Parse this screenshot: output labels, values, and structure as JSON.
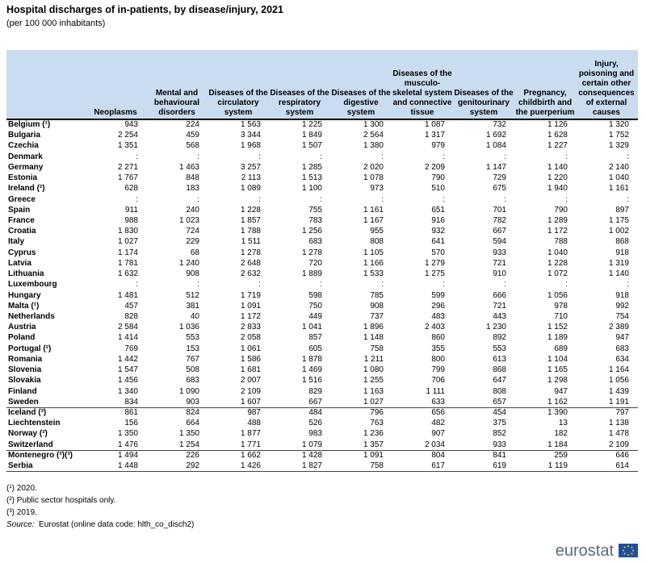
{
  "header": {
    "title": "Hospital discharges of in-patients, by disease/injury, 2021",
    "subtitle": "(per 100 000 inhabitants)"
  },
  "table": {
    "columns": [
      "Neoplasms",
      "Mental and behavioural disorders",
      "Diseases of the circulatory system",
      "Diseases of the respiratory system",
      "Diseases of the digestive system",
      "Diseases of the musculo-skeletal system and connective tissue",
      "Diseases of the genitourinary system",
      "Pregnancy, childbirth and the puerperium",
      "Injury, poisoning and certain other consequences of external causes"
    ],
    "rows": [
      {
        "label": "Belgium (¹)",
        "values": [
          "943",
          "224",
          "1 563",
          "1 225",
          "1 300",
          "1 087",
          "732",
          "1 126",
          "1 320"
        ]
      },
      {
        "label": "Bulgaria",
        "values": [
          "2 254",
          "459",
          "3 344",
          "1 849",
          "2 564",
          "1 317",
          "1 692",
          "1 628",
          "1 752"
        ]
      },
      {
        "label": "Czechia",
        "values": [
          "1 351",
          "568",
          "1 968",
          "1 507",
          "1 380",
          "979",
          "1 084",
          "1 227",
          "1 329"
        ]
      },
      {
        "label": "Denmark",
        "values": [
          ":",
          ":",
          ":",
          ":",
          ":",
          ":",
          ":",
          ":",
          ":"
        ]
      },
      {
        "label": "Germany",
        "values": [
          "2 271",
          "1 463",
          "3 257",
          "1 285",
          "2 020",
          "2 209",
          "1 147",
          "1 140",
          "2 140"
        ]
      },
      {
        "label": "Estonia",
        "values": [
          "1 767",
          "848",
          "2 113",
          "1 513",
          "1 078",
          "790",
          "729",
          "1 220",
          "1 040"
        ]
      },
      {
        "label": "Ireland (²)",
        "values": [
          "628",
          "183",
          "1 089",
          "1 100",
          "973",
          "510",
          "675",
          "1 940",
          "1 161"
        ]
      },
      {
        "label": "Greece",
        "values": [
          ":",
          ":",
          ":",
          ":",
          ":",
          ":",
          ":",
          ":",
          ":"
        ]
      },
      {
        "label": "Spain",
        "values": [
          "911",
          "240",
          "1 228",
          "755",
          "1 161",
          "651",
          "701",
          "790",
          "897"
        ]
      },
      {
        "label": "France",
        "values": [
          "988",
          "1 023",
          "1 857",
          "783",
          "1 167",
          "916",
          "782",
          "1 289",
          "1 175"
        ]
      },
      {
        "label": "Croatia",
        "values": [
          "1 830",
          "724",
          "1 788",
          "1 256",
          "955",
          "932",
          "667",
          "1 172",
          "1 002"
        ]
      },
      {
        "label": "Italy",
        "values": [
          "1 027",
          "229",
          "1 511",
          "683",
          "808",
          "641",
          "594",
          "788",
          "868"
        ]
      },
      {
        "label": "Cyprus",
        "values": [
          "1 174",
          "68",
          "1 278",
          "1 278",
          "1 105",
          "570",
          "933",
          "1 040",
          "918"
        ]
      },
      {
        "label": "Latvia",
        "values": [
          "1 781",
          "1 240",
          "2 648",
          "720",
          "1 166",
          "1 279",
          "721",
          "1 228",
          "1 319"
        ]
      },
      {
        "label": "Lithuania",
        "values": [
          "1 632",
          "908",
          "2 632",
          "1 889",
          "1 533",
          "1 275",
          "910",
          "1 072",
          "1 140"
        ]
      },
      {
        "label": "Luxembourg",
        "values": [
          ":",
          ":",
          ":",
          ":",
          ":",
          ":",
          ":",
          ":",
          ":"
        ]
      },
      {
        "label": "Hungary",
        "values": [
          "1 481",
          "512",
          "1 719",
          "598",
          "785",
          "599",
          "666",
          "1 056",
          "918"
        ]
      },
      {
        "label": "Malta (¹)",
        "values": [
          "457",
          "381",
          "1 091",
          "750",
          "908",
          "296",
          "721",
          "978",
          "992"
        ]
      },
      {
        "label": "Netherlands",
        "values": [
          "828",
          "40",
          "1 172",
          "449",
          "737",
          "483",
          "443",
          "710",
          "754"
        ]
      },
      {
        "label": "Austria",
        "values": [
          "2 584",
          "1 036",
          "2 833",
          "1 041",
          "1 896",
          "2 403",
          "1 230",
          "1 152",
          "2 389"
        ]
      },
      {
        "label": "Poland",
        "values": [
          "1 414",
          "553",
          "2 058",
          "857",
          "1 148",
          "860",
          "892",
          "1 189",
          "947"
        ]
      },
      {
        "label": "Portugal (²)",
        "values": [
          "769",
          "153",
          "1 061",
          "605",
          "758",
          "355",
          "553",
          "689",
          "683"
        ]
      },
      {
        "label": "Romania",
        "values": [
          "1 442",
          "767",
          "1 586",
          "1 878",
          "1 211",
          "800",
          "613",
          "1 104",
          "634"
        ]
      },
      {
        "label": "Slovenia",
        "values": [
          "1 547",
          "508",
          "1 681",
          "1 469",
          "1 080",
          "799",
          "868",
          "1 165",
          "1 164"
        ]
      },
      {
        "label": "Slovakia",
        "values": [
          "1 456",
          "683",
          "2 007",
          "1 516",
          "1 255",
          "706",
          "647",
          "1 298",
          "1 056"
        ]
      },
      {
        "label": "Finland",
        "values": [
          "1 340",
          "1 090",
          "2 109",
          "829",
          "1 163",
          "1 111",
          "808",
          "947",
          "1 439"
        ]
      },
      {
        "label": "Sweden",
        "values": [
          "834",
          "903",
          "1 607",
          "667",
          "1 027",
          "633",
          "657",
          "1 162",
          "1 191"
        ]
      },
      {
        "label": "Iceland (³)",
        "values": [
          "861",
          "824",
          "987",
          "484",
          "796",
          "656",
          "454",
          "1 390",
          "797"
        ]
      },
      {
        "label": "Liechtenstein",
        "values": [
          "156",
          "664",
          "488",
          "526",
          "763",
          "482",
          "375",
          "13",
          "1 138"
        ]
      },
      {
        "label": "Norway (²)",
        "values": [
          "1 350",
          "1 350",
          "1 877",
          "983",
          "1 236",
          "907",
          "852",
          "182",
          "1 478"
        ]
      },
      {
        "label": "Switzerland",
        "values": [
          "1 476",
          "1 254",
          "1 771",
          "1 079",
          "1 357",
          "2 034",
          "933",
          "1 184",
          "2 109"
        ]
      },
      {
        "label": "Montenegro (²)(³)",
        "values": [
          "1 494",
          "226",
          "1 662",
          "1 428",
          "1 091",
          "804",
          "841",
          "259",
          "646"
        ]
      },
      {
        "label": "Serbia",
        "values": [
          "1 448",
          "292",
          "1 426",
          "1 827",
          "758",
          "617",
          "619",
          "1 119",
          "614"
        ]
      }
    ]
  },
  "footnotes": [
    "(¹) 2020.",
    "(²) Public sector hospitals only.",
    "(³) 2019."
  ],
  "source": {
    "label": "Source:",
    "text": "Eurostat (online data code: hlth_co_disch2)"
  },
  "logo": "eurostat"
}
